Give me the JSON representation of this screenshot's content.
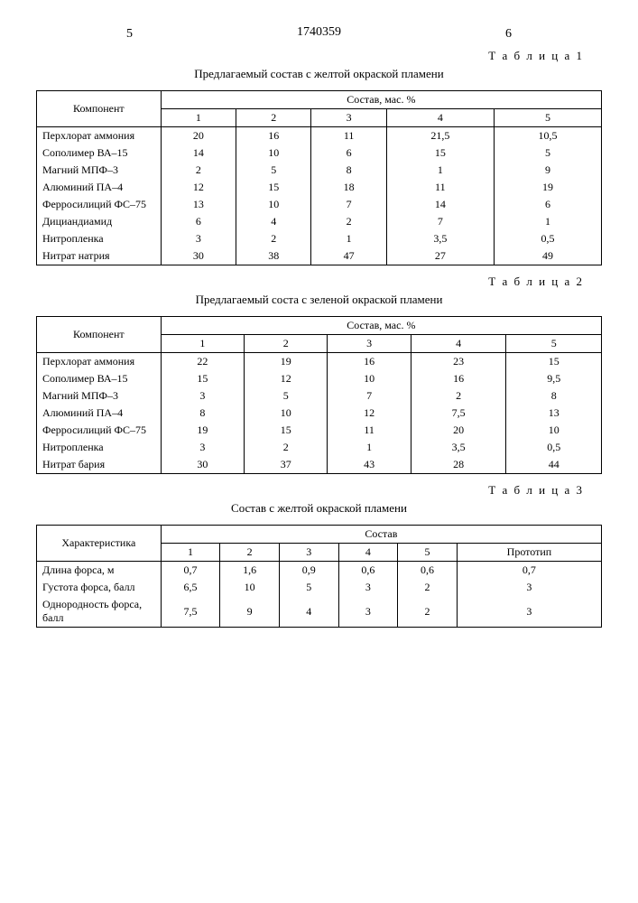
{
  "pageLeft": "5",
  "pageRight": "6",
  "docNumber": "1740359",
  "tableLabel1": "Т а б л и ц а 1",
  "tableLabel2": "Т а б л и ц а 2",
  "tableLabel3": "Т а б л и ц а 3",
  "caption1": "Предлагаемый состав с желтой окраской пламени",
  "caption2": "Предлагаемый соста с зеленой окраской пламени",
  "caption3": "Состав с желтой окраской пламени",
  "compHeader": "Компонент",
  "sostavHeader": "Состав, мас. %",
  "sostavHeader3": "Состав",
  "charHeader": "Характеристика",
  "protoHeader": "Прототип",
  "cols5": [
    "1",
    "2",
    "3",
    "4",
    "5"
  ],
  "t1rows": [
    {
      "label": "Перхлорат аммония",
      "v": [
        "20",
        "16",
        "11",
        "21,5",
        "10,5"
      ]
    },
    {
      "label": "Сополимер ВА–15",
      "v": [
        "14",
        "10",
        "6",
        "15",
        "5"
      ]
    },
    {
      "label": "Магний МПФ–3",
      "v": [
        "2",
        "5",
        "8",
        "1",
        "9"
      ]
    },
    {
      "label": "Алюминий ПА–4",
      "v": [
        "12",
        "15",
        "18",
        "11",
        "19"
      ]
    },
    {
      "label": "Ферросилиций ФС–75",
      "v": [
        "13",
        "10",
        "7",
        "14",
        "6"
      ]
    },
    {
      "label": "Дициандиамид",
      "v": [
        "6",
        "4",
        "2",
        "7",
        "1"
      ]
    },
    {
      "label": "Нитропленка",
      "v": [
        "3",
        "2",
        "1",
        "3,5",
        "0,5"
      ]
    },
    {
      "label": "Нитрат натрия",
      "v": [
        "30",
        "38",
        "47",
        "27",
        "49"
      ]
    }
  ],
  "t2rows": [
    {
      "label": "Перхлорат аммония",
      "v": [
        "22",
        "19",
        "16",
        "23",
        "15"
      ]
    },
    {
      "label": "Сополимер ВА–15",
      "v": [
        "15",
        "12",
        "10",
        "16",
        "9,5"
      ]
    },
    {
      "label": "Магний МПФ–3",
      "v": [
        "3",
        "5",
        "7",
        "2",
        "8"
      ]
    },
    {
      "label": "Алюминий ПА–4",
      "v": [
        "8",
        "10",
        "12",
        "7,5",
        "13"
      ]
    },
    {
      "label": "Ферросилиций ФС–75",
      "v": [
        "19",
        "15",
        "11",
        "20",
        "10"
      ]
    },
    {
      "label": "Нитропленка",
      "v": [
        "3",
        "2",
        "1",
        "3,5",
        "0,5"
      ]
    },
    {
      "label": "Нитрат бария",
      "v": [
        "30",
        "37",
        "43",
        "28",
        "44"
      ]
    }
  ],
  "t3rows": [
    {
      "label": "Длина форса, м",
      "v": [
        "0,7",
        "1,6",
        "0,9",
        "0,6",
        "0,6",
        "0,7"
      ]
    },
    {
      "label": "Густота форса, балл",
      "v": [
        "6,5",
        "10",
        "5",
        "3",
        "2",
        "3"
      ]
    },
    {
      "label": "Однородность форса, балл",
      "v": [
        "7,5",
        "9",
        "4",
        "3",
        "2",
        "3"
      ]
    }
  ]
}
